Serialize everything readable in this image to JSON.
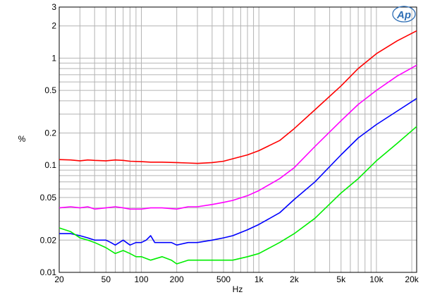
{
  "chart_data": {
    "type": "line",
    "title": "",
    "xlabel": "Hz",
    "ylabel": "%",
    "x_scale": "log",
    "y_scale": "log",
    "xlim": [
      20,
      22000
    ],
    "ylim": [
      0.01,
      3
    ],
    "grid": true,
    "x_tick_values": [
      20,
      50,
      100,
      200,
      500,
      1000,
      2000,
      5000,
      10000,
      20000
    ],
    "x_tick_labels": [
      "20",
      "50",
      "100",
      "200",
      "500",
      "1k",
      "2k",
      "5k",
      "10k",
      "20k"
    ],
    "y_tick_values": [
      0.01,
      0.02,
      0.05,
      0.1,
      0.2,
      0.5,
      1,
      2,
      3
    ],
    "y_tick_labels": [
      "0.01",
      "0.02",
      "0.05",
      "0.1",
      "0.2",
      "0.5",
      "1",
      "2",
      "3"
    ],
    "logo": "Ap",
    "series": [
      {
        "color": "#ff0000",
        "x": [
          20,
          25,
          30,
          35,
          40,
          50,
          60,
          70,
          80,
          100,
          120,
          150,
          200,
          250,
          300,
          400,
          500,
          600,
          800,
          1000,
          1500,
          2000,
          3000,
          5000,
          7000,
          10000,
          15000,
          22000
        ],
        "y": [
          0.113,
          0.112,
          0.11,
          0.112,
          0.111,
          0.11,
          0.112,
          0.111,
          0.109,
          0.108,
          0.107,
          0.107,
          0.106,
          0.105,
          0.104,
          0.106,
          0.109,
          0.115,
          0.125,
          0.137,
          0.17,
          0.22,
          0.33,
          0.55,
          0.8,
          1.1,
          1.45,
          1.8
        ]
      },
      {
        "color": "#ff00ff",
        "x": [
          20,
          25,
          30,
          35,
          40,
          50,
          60,
          70,
          80,
          100,
          120,
          150,
          200,
          250,
          300,
          400,
          500,
          600,
          800,
          1000,
          1500,
          2000,
          3000,
          5000,
          7000,
          10000,
          15000,
          22000
        ],
        "y": [
          0.04,
          0.041,
          0.04,
          0.041,
          0.039,
          0.04,
          0.041,
          0.04,
          0.039,
          0.039,
          0.04,
          0.04,
          0.039,
          0.041,
          0.041,
          0.043,
          0.045,
          0.047,
          0.052,
          0.058,
          0.075,
          0.095,
          0.15,
          0.26,
          0.37,
          0.5,
          0.68,
          0.86
        ]
      },
      {
        "color": "#0000ff",
        "x": [
          20,
          25,
          30,
          35,
          40,
          50,
          55,
          60,
          70,
          80,
          90,
          100,
          110,
          120,
          130,
          150,
          180,
          200,
          250,
          300,
          400,
          500,
          600,
          800,
          1000,
          1500,
          2000,
          3000,
          5000,
          7000,
          10000,
          15000,
          22000
        ],
        "y": [
          0.023,
          0.023,
          0.022,
          0.021,
          0.02,
          0.02,
          0.019,
          0.018,
          0.02,
          0.018,
          0.019,
          0.019,
          0.02,
          0.022,
          0.019,
          0.019,
          0.019,
          0.018,
          0.019,
          0.019,
          0.02,
          0.021,
          0.022,
          0.025,
          0.028,
          0.036,
          0.048,
          0.07,
          0.125,
          0.18,
          0.24,
          0.32,
          0.42
        ]
      },
      {
        "color": "#00ee00",
        "x": [
          20,
          25,
          30,
          35,
          40,
          50,
          60,
          70,
          80,
          90,
          100,
          120,
          150,
          180,
          200,
          250,
          300,
          400,
          500,
          600,
          800,
          1000,
          1500,
          2000,
          3000,
          5000,
          7000,
          10000,
          15000,
          22000
        ],
        "y": [
          0.026,
          0.024,
          0.021,
          0.02,
          0.019,
          0.017,
          0.015,
          0.016,
          0.015,
          0.014,
          0.014,
          0.013,
          0.014,
          0.013,
          0.012,
          0.013,
          0.013,
          0.013,
          0.013,
          0.013,
          0.014,
          0.015,
          0.019,
          0.023,
          0.032,
          0.055,
          0.075,
          0.11,
          0.16,
          0.23
        ]
      }
    ]
  }
}
